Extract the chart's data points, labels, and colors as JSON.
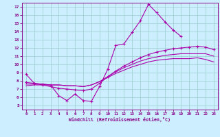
{
  "xlabel": "Windchill (Refroidissement éolien,°C)",
  "bg_color": "#cceeff",
  "line_color": "#aa00aa",
  "grid_color": "#99cccc",
  "xlim": [
    -0.5,
    23.5
  ],
  "ylim": [
    4.5,
    17.5
  ],
  "xticks": [
    0,
    1,
    2,
    3,
    4,
    5,
    6,
    7,
    8,
    9,
    10,
    11,
    12,
    13,
    14,
    15,
    16,
    17,
    18,
    19,
    20,
    21,
    22,
    23
  ],
  "yticks": [
    5,
    6,
    7,
    8,
    9,
    10,
    11,
    12,
    13,
    14,
    15,
    16,
    17
  ],
  "line1_x": [
    0,
    1,
    2,
    3,
    4,
    5,
    6,
    7,
    8,
    9,
    10,
    11,
    12,
    13,
    14,
    15,
    16,
    17,
    18,
    19
  ],
  "line1_y": [
    8.8,
    7.7,
    7.6,
    7.5,
    6.2,
    5.6,
    6.4,
    5.6,
    5.5,
    7.3,
    9.4,
    12.3,
    12.5,
    13.9,
    15.3,
    17.3,
    16.3,
    15.2,
    14.2,
    13.4
  ],
  "line2_x": [
    0,
    1,
    2,
    3,
    4,
    5,
    6,
    7,
    8,
    9,
    10,
    11,
    12,
    13,
    14,
    15,
    16,
    17,
    18,
    19,
    20,
    21,
    22,
    23
  ],
  "line2_y": [
    7.8,
    7.7,
    7.5,
    7.3,
    7.1,
    7.0,
    6.9,
    6.8,
    7.0,
    7.7,
    8.5,
    9.2,
    9.8,
    10.3,
    10.8,
    11.2,
    11.5,
    11.7,
    11.9,
    12.0,
    12.1,
    12.2,
    12.1,
    11.8
  ],
  "line3_x": [
    0,
    1,
    2,
    3,
    4,
    5,
    6,
    7,
    8,
    9,
    10,
    11,
    12,
    13,
    14,
    15,
    16,
    17,
    18,
    19,
    20,
    21,
    22,
    23
  ],
  "line3_y": [
    7.6,
    7.6,
    7.6,
    7.5,
    7.5,
    7.4,
    7.4,
    7.3,
    7.5,
    7.9,
    8.5,
    9.1,
    9.6,
    10.0,
    10.4,
    10.7,
    10.9,
    11.1,
    11.2,
    11.3,
    11.3,
    11.3,
    11.3,
    11.0
  ],
  "line4_x": [
    0,
    1,
    2,
    3,
    4,
    5,
    6,
    7,
    8,
    9,
    10,
    11,
    12,
    13,
    14,
    15,
    16,
    17,
    18,
    19,
    20,
    21,
    22,
    23
  ],
  "line4_y": [
    7.4,
    7.5,
    7.5,
    7.5,
    7.5,
    7.4,
    7.4,
    7.3,
    7.5,
    7.9,
    8.4,
    8.9,
    9.3,
    9.7,
    10.0,
    10.3,
    10.5,
    10.6,
    10.7,
    10.7,
    10.7,
    10.8,
    10.6,
    10.3
  ]
}
